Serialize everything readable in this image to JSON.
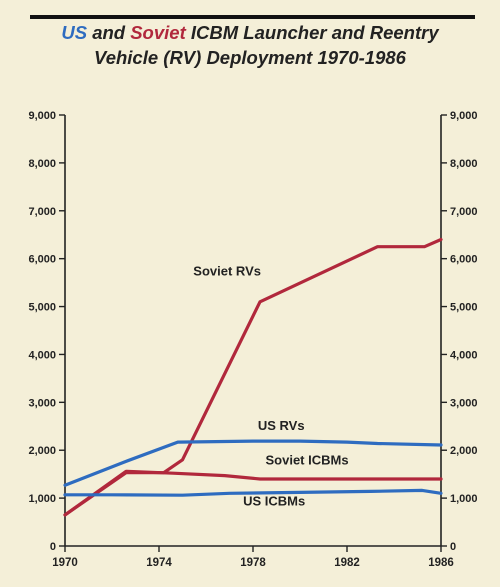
{
  "chart_data": {
    "type": "line",
    "title": {
      "us": "US",
      "and": "and",
      "soviet": "Soviet",
      "line1_rest": "ICBM Launcher and Reentry",
      "line2": "Vehicle (RV) Deployment 1970-1986"
    },
    "xlim": [
      1970,
      1986
    ],
    "ylim": [
      0,
      9000
    ],
    "x_ticks": [
      1970,
      1974,
      1978,
      1982,
      1986
    ],
    "x_tick_labels": [
      "1970",
      "1974",
      "1978",
      "1982",
      "1986"
    ],
    "y_ticks": [
      0,
      1000,
      2000,
      3000,
      4000,
      5000,
      6000,
      7000,
      8000,
      9000
    ],
    "y_tick_labels": [
      "0",
      "1,000",
      "2,000",
      "3,000",
      "4,000",
      "5,000",
      "6,000",
      "7,000",
      "8,000",
      "9,000"
    ],
    "grid": false,
    "legend": "none",
    "series": [
      {
        "name": "Soviet RVs",
        "color": "#b1283c",
        "x": [
          1970,
          1972.6,
          1974.2,
          1975,
          1978.3,
          1983.3,
          1985.3,
          1986
        ],
        "y": [
          650,
          1530,
          1530,
          1800,
          5100,
          6250,
          6250,
          6400
        ]
      },
      {
        "name": "Soviet ICBMs",
        "color": "#b1283c",
        "x": [
          1970,
          1972.6,
          1974.6,
          1976.8,
          1978.3,
          1981,
          1983.3,
          1985.3,
          1986
        ],
        "y": [
          650,
          1560,
          1520,
          1470,
          1400,
          1400,
          1400,
          1400,
          1400
        ]
      },
      {
        "name": "US RVs",
        "color": "#2e6cc0",
        "x": [
          1970,
          1972.5,
          1974.8,
          1978,
          1980,
          1982,
          1983.3,
          1986
        ],
        "y": [
          1270,
          1750,
          2170,
          2190,
          2190,
          2170,
          2140,
          2110
        ]
      },
      {
        "name": "US ICBMs",
        "color": "#2e6cc0",
        "x": [
          1970,
          1972,
          1975,
          1977,
          1980,
          1983,
          1985.2,
          1986
        ],
        "y": [
          1070,
          1070,
          1060,
          1100,
          1120,
          1140,
          1160,
          1100
        ]
      }
    ],
    "annotations": [
      {
        "text": "Soviet RVs",
        "x": 1976.9,
        "y": 5650,
        "color": "#222"
      },
      {
        "text": "US RVs",
        "x": 1979.2,
        "y": 2420,
        "color": "#222"
      },
      {
        "text": "Soviet ICBMs",
        "x": 1980.3,
        "y": 1700,
        "color": "#222"
      },
      {
        "text": "US ICBMs",
        "x": 1978.9,
        "y": 850,
        "color": "#222"
      }
    ]
  }
}
